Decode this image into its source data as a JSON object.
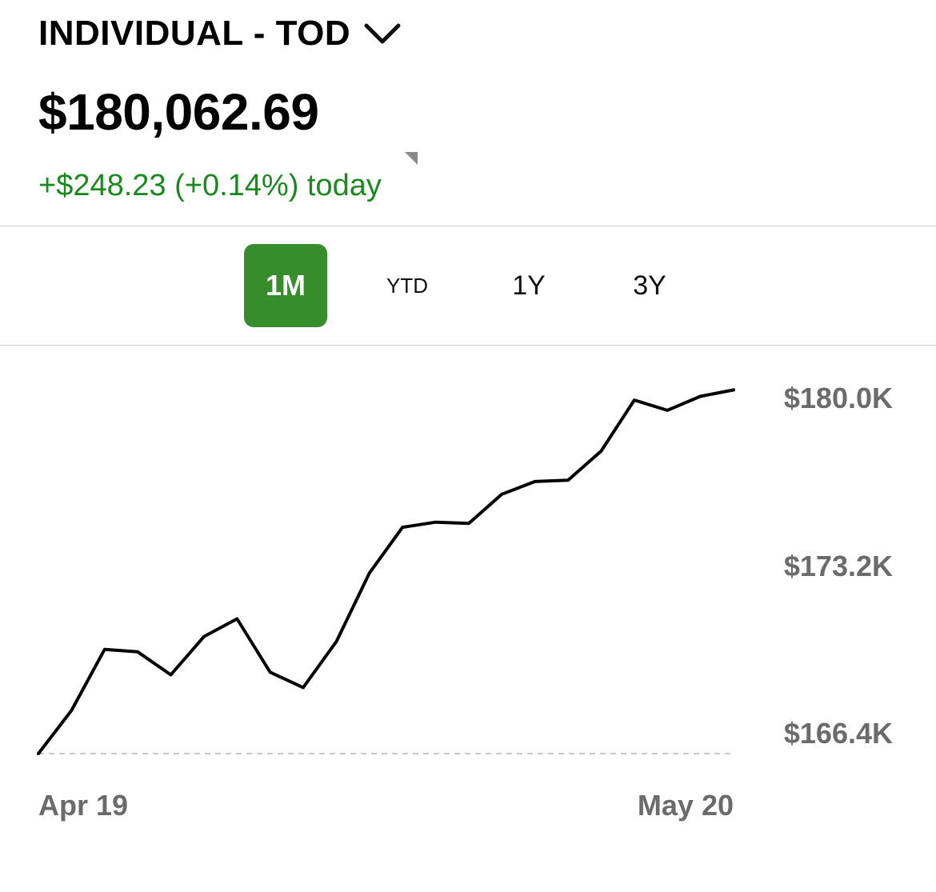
{
  "account": {
    "name": "INDIVIDUAL - TOD"
  },
  "balance": {
    "value": "$180,062.69",
    "change_text": "+$248.23 (+0.14%) today",
    "change_color": "#1a8a1f"
  },
  "time_ranges": {
    "selected": "1M",
    "items": [
      {
        "label": "1M"
      },
      {
        "label": "YTD"
      },
      {
        "label": "1Y"
      },
      {
        "label": "3Y"
      }
    ],
    "active_color": "#378c2c"
  },
  "chart_data": {
    "type": "line",
    "title": "",
    "xlabel": "",
    "ylabel": "",
    "x_tick_labels": [
      "Apr 19",
      "May 20"
    ],
    "y_tick_labels": [
      "$180.0K",
      "$173.2K",
      "$166.4K"
    ],
    "ylim": [
      166.4,
      181.5
    ],
    "series": [
      {
        "values": [
          166.4,
          168.1,
          170.5,
          170.4,
          169.5,
          171.0,
          171.7,
          169.6,
          169.0,
          170.8,
          173.5,
          175.3,
          175.5,
          175.45,
          176.6,
          177.1,
          177.15,
          178.3,
          180.3,
          179.9,
          180.45,
          180.7
        ]
      }
    ],
    "baseline": 166.4,
    "line_color": "#000000"
  }
}
